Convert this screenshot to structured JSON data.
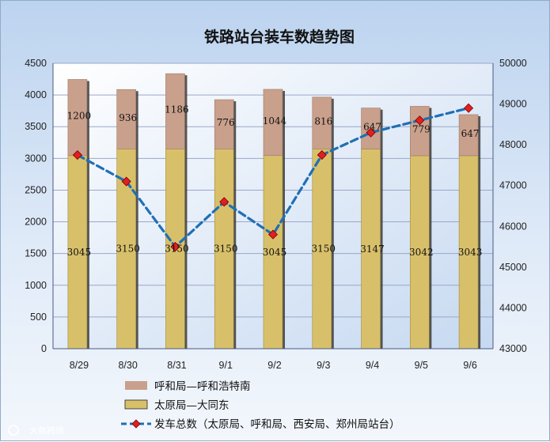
{
  "chart_data": {
    "type": "bar",
    "title": "铁路站台装车数趋势图",
    "categories": [
      "8/29",
      "8/30",
      "8/31",
      "9/1",
      "9/2",
      "9/3",
      "9/4",
      "9/5",
      "9/6"
    ],
    "series": [
      {
        "name": "太原局—大同东",
        "kind": "stacked-bar",
        "axis": "left",
        "color": "#d8c06a",
        "values": [
          3045,
          3150,
          3150,
          3150,
          3045,
          3150,
          3147,
          3042,
          3043
        ]
      },
      {
        "name": "呼和局—呼和浩特南",
        "kind": "stacked-bar",
        "axis": "left",
        "color": "#c9a08c",
        "values": [
          1200,
          936,
          1186,
          776,
          1044,
          816,
          647,
          779,
          647
        ]
      },
      {
        "name": "发车总数（太原局、呼和局、西安局、郑州局站台）",
        "kind": "line",
        "axis": "right",
        "color": "#1f6fb5",
        "values": [
          47750,
          47100,
          45500,
          46600,
          45800,
          47750,
          48300,
          48600,
          48900
        ]
      }
    ],
    "y_left": {
      "min": 0,
      "max": 4500,
      "step": 500
    },
    "y_right": {
      "min": 43000,
      "max": 50000,
      "step": 1000
    },
    "grid": true,
    "legend_placement": "bottom"
  },
  "watermark": "大数跨境"
}
